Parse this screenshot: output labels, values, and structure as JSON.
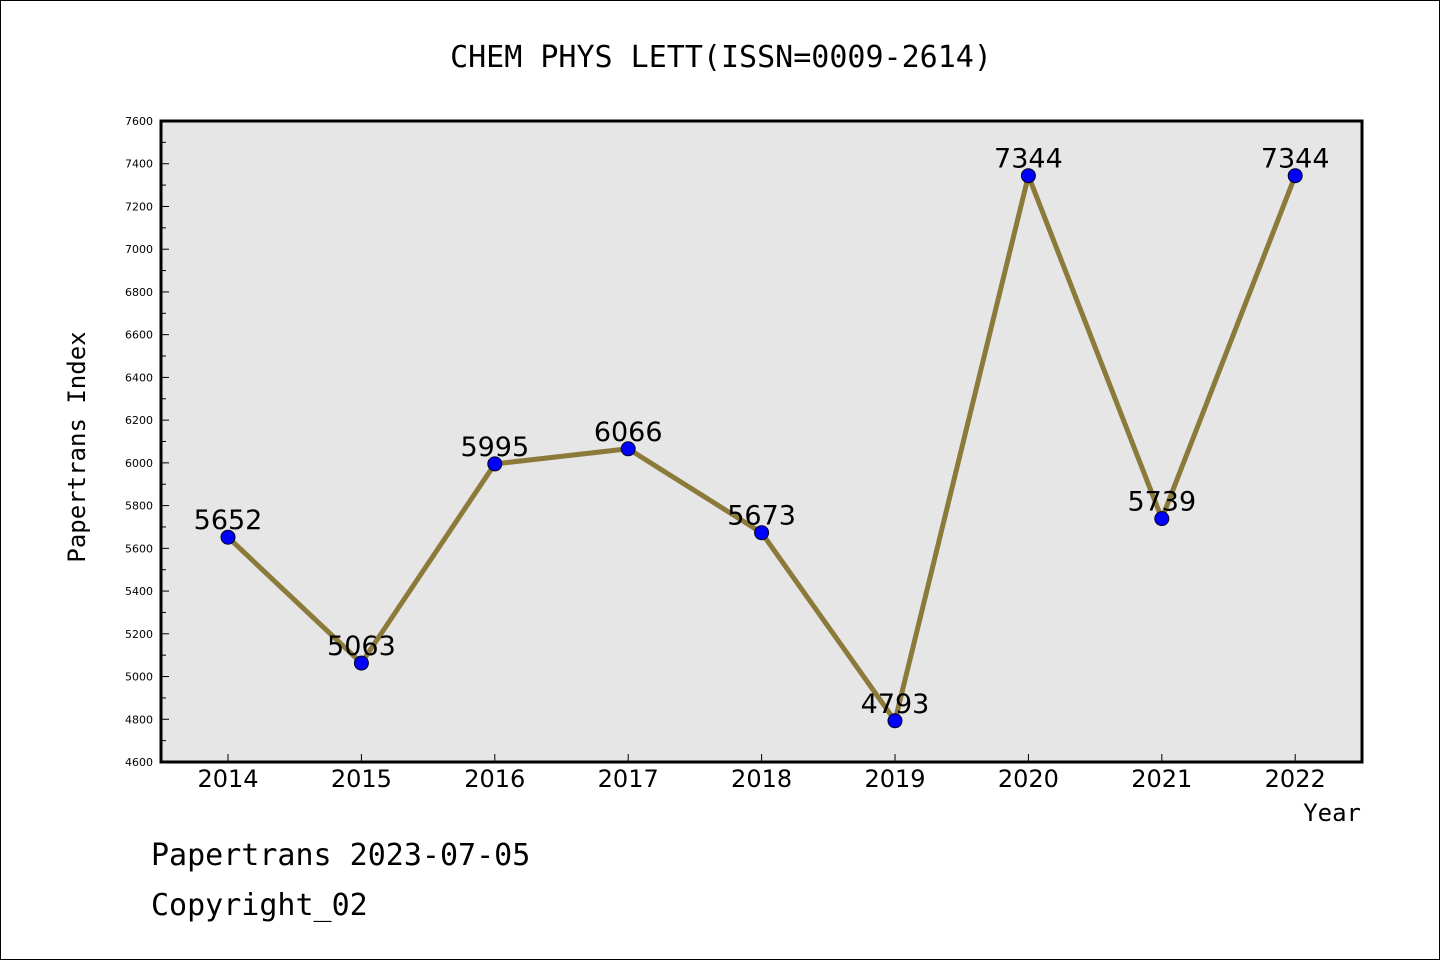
{
  "chart_data": {
    "type": "line",
    "title": "CHEM PHYS LETT(ISSN=0009-2614)",
    "xlabel": "Year",
    "ylabel": "Papertrans Index",
    "categories": [
      "2014",
      "2015",
      "2016",
      "2017",
      "2018",
      "2019",
      "2020",
      "2021",
      "2022"
    ],
    "values": [
      5652,
      5063,
      5995,
      6066,
      5673,
      4793,
      7344,
      5739,
      7344
    ],
    "data_labels": [
      "5652",
      "5063",
      "5995",
      "6066",
      "5673",
      "4793",
      "7344",
      "5739",
      "7344"
    ],
    "ylim": [
      4600,
      7600
    ],
    "yticks": [
      4600,
      4800,
      5000,
      5200,
      5400,
      5600,
      5800,
      6000,
      6200,
      6400,
      6600,
      6800,
      7000,
      7200,
      7400,
      7600
    ],
    "grid": false,
    "legend": "none",
    "colors": {
      "line": "#8b7a3a",
      "marker": "#0000ff",
      "plot_background": "#e6e6e6",
      "page_background": "#ffffff"
    }
  },
  "footer": {
    "line1": "Papertrans 2023-07-05",
    "line2": "Copyright_02"
  }
}
